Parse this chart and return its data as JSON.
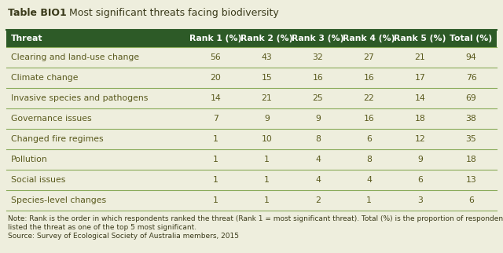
{
  "title_label": "Table BIO1",
  "title_text": "Most significant threats facing biodiversity",
  "bg_color": "#eeeedd",
  "header_bg": "#2d5a27",
  "header_text_color": "#ffffff",
  "row_line_color": "#8aab5a",
  "columns": [
    "Threat",
    "Rank 1 (%)",
    "Rank 2 (%)",
    "Rank 3 (%)",
    "Rank 4 (%)",
    "Rank 5 (%)",
    "Total (%)"
  ],
  "rows": [
    [
      "Clearing and land-use change",
      "56",
      "43",
      "32",
      "27",
      "21",
      "94"
    ],
    [
      "Climate change",
      "20",
      "15",
      "16",
      "16",
      "17",
      "76"
    ],
    [
      "Invasive species and pathogens",
      "14",
      "21",
      "25",
      "22",
      "14",
      "69"
    ],
    [
      "Governance issues",
      "7",
      "9",
      "9",
      "16",
      "18",
      "38"
    ],
    [
      "Changed fire regimes",
      "1",
      "10",
      "8",
      "6",
      "12",
      "35"
    ],
    [
      "Pollution",
      "1",
      "1",
      "4",
      "8",
      "9",
      "18"
    ],
    [
      "Social issues",
      "1",
      "1",
      "4",
      "4",
      "6",
      "13"
    ],
    [
      "Species-level changes",
      "1",
      "1",
      "2",
      "1",
      "3",
      "6"
    ]
  ],
  "note_line1": "Note: Rank is the order in which respondents ranked the threat (Rank 1 = most significant threat). Total (%) is the proportion of respondents who",
  "note_line2": "listed the threat as one of the top 5 most significant.",
  "source_line": "Source: Survey of Ecological Society of Australia members, 2015",
  "data_text_color": "#5a5a1e",
  "title_color": "#3a3a1a",
  "note_color": "#3a3a1a",
  "header_fontsize": 7.8,
  "data_fontsize": 7.8,
  "title_fontsize": 9.0,
  "note_fontsize": 6.5,
  "fig_width": 6.4,
  "fig_height": 3.22,
  "dpi": 100
}
